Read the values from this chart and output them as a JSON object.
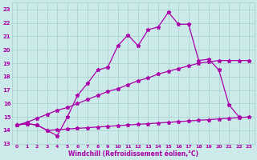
{
  "xlabel": "Windchill (Refroidissement éolien,°C)",
  "bg_color": "#cceaea",
  "grid_color": "#aacccc",
  "line_color": "#aa00aa",
  "ylim": [
    13,
    23.5
  ],
  "xlim": [
    -0.5,
    23.5
  ],
  "yticks": [
    13,
    14,
    15,
    16,
    17,
    18,
    19,
    20,
    21,
    22,
    23
  ],
  "xticks": [
    0,
    1,
    2,
    3,
    4,
    5,
    6,
    7,
    8,
    9,
    10,
    11,
    12,
    13,
    14,
    15,
    16,
    17,
    18,
    19,
    20,
    21,
    22,
    23
  ],
  "line1_x": [
    0,
    1,
    2,
    3,
    4,
    5,
    6,
    7,
    8,
    9,
    10,
    11,
    12,
    13,
    14,
    15,
    16,
    17,
    18,
    19,
    20,
    21,
    22
  ],
  "line1_y": [
    14.4,
    14.5,
    14.4,
    14.0,
    13.6,
    15.0,
    16.6,
    17.5,
    18.5,
    18.7,
    20.3,
    21.1,
    20.3,
    21.5,
    21.7,
    22.8,
    21.9,
    21.9,
    19.2,
    19.3,
    18.5,
    15.9,
    15.0
  ],
  "line2_x": [
    0,
    1,
    2,
    3,
    4,
    5,
    6,
    7,
    8,
    9,
    10,
    11,
    12,
    13,
    14,
    15,
    16,
    17,
    18,
    19,
    20,
    21,
    22,
    23
  ],
  "line2_y": [
    14.4,
    14.6,
    14.9,
    15.2,
    15.5,
    15.7,
    16.0,
    16.3,
    16.6,
    16.9,
    17.1,
    17.4,
    17.7,
    17.9,
    18.2,
    18.4,
    18.6,
    18.8,
    19.0,
    19.1,
    19.2,
    19.2,
    19.2,
    19.2
  ],
  "line3_x": [
    0,
    1,
    2,
    3,
    4,
    5,
    6,
    7,
    8,
    9,
    10,
    11,
    12,
    13,
    14,
    15,
    16,
    17,
    18,
    19,
    20,
    21,
    22,
    23
  ],
  "line3_y": [
    14.4,
    14.5,
    14.4,
    14.0,
    14.05,
    14.1,
    14.15,
    14.2,
    14.25,
    14.3,
    14.35,
    14.4,
    14.45,
    14.5,
    14.55,
    14.6,
    14.65,
    14.7,
    14.75,
    14.8,
    14.85,
    14.9,
    14.95,
    15.0
  ]
}
